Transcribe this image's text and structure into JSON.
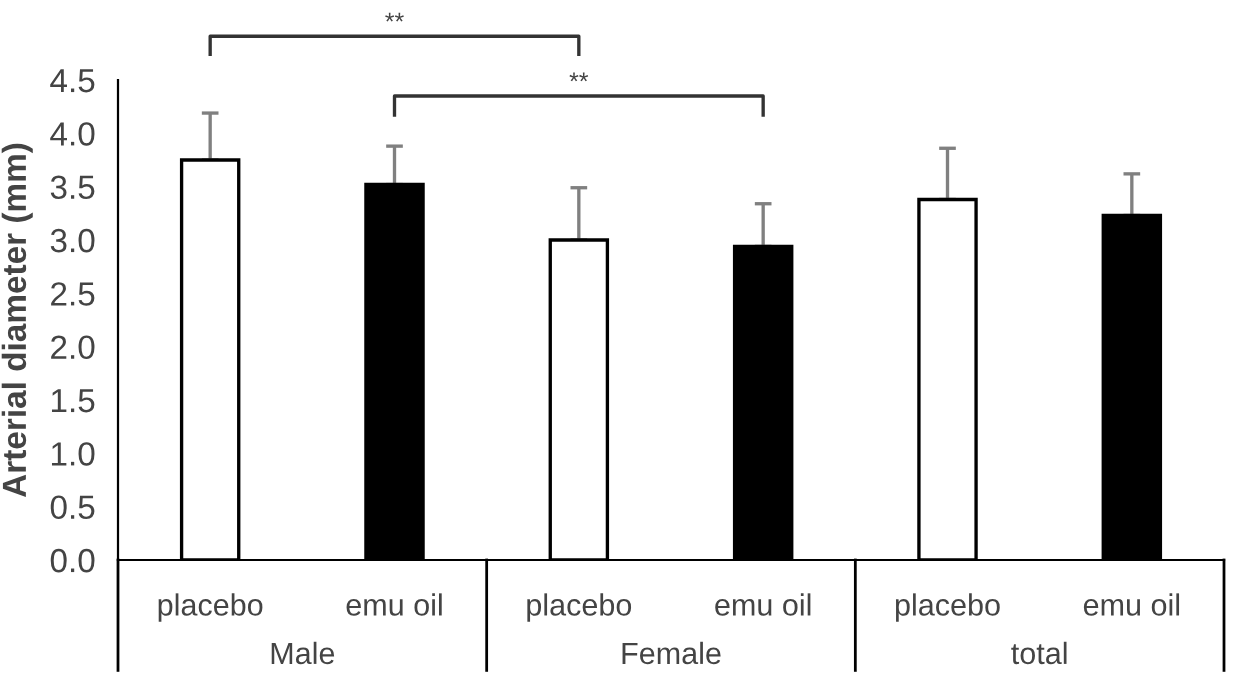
{
  "chart_data": {
    "type": "bar",
    "ylabel": "Arterial diameter (mm)",
    "categories": [
      "placebo",
      "emu oil",
      "placebo",
      "emu oil",
      "placebo",
      "emu oil"
    ],
    "values": [
      3.75,
      3.52,
      3.0,
      2.94,
      3.38,
      3.23
    ],
    "errors": [
      [
        3.75,
        4.19
      ],
      [
        3.52,
        3.88
      ],
      [
        3.0,
        3.49
      ],
      [
        2.94,
        3.34
      ],
      [
        3.38,
        3.86
      ],
      [
        3.23,
        3.62
      ]
    ],
    "colors": [
      "#ffffff",
      "#000000",
      "#ffffff",
      "#000000",
      "#ffffff",
      "#000000"
    ],
    "annotations": [
      "**",
      "**",
      "Male",
      "Female",
      "total"
    ],
    "ylim": [
      0,
      4.5
    ],
    "yticks": [
      {
        "value": 0,
        "label": "0.0"
      },
      {
        "value": 0.5,
        "label": "0.5"
      },
      {
        "value": 1,
        "label": "1.0"
      },
      {
        "value": 1.5,
        "label": "1.5"
      },
      {
        "value": 2,
        "label": "2.0"
      },
      {
        "value": 2.5,
        "label": "2.5"
      },
      {
        "value": 3,
        "label": "3.0"
      },
      {
        "value": 3.5,
        "label": "3.5"
      },
      {
        "value": 4,
        "label": "4.0"
      },
      {
        "value": 4.5,
        "label": "4.5"
      }
    ],
    "grid": false,
    "legend": false
  }
}
